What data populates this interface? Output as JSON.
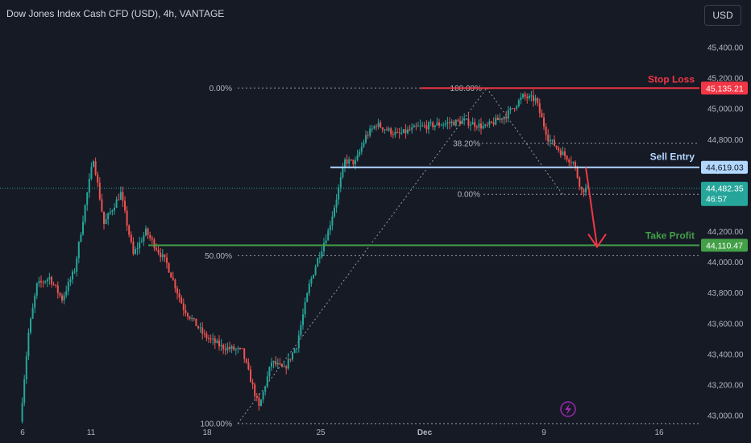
{
  "header": {
    "title": "Dow Jones Index Cash CFD (USD), 4h, VANTAGE",
    "currency_button": "USD"
  },
  "colors": {
    "background": "#161a25",
    "up": "#26a69a",
    "down": "#ef5350",
    "stop": "#f23645",
    "entry": "#b2d7ff",
    "take": "#43a047",
    "purple": "#9c27b0"
  },
  "annotations": {
    "stop_loss": "Stop Loss",
    "sell_entry": "Sell Entry",
    "take_profit": "Take Profit"
  },
  "price_labels": {
    "stop": "45,135.21",
    "entry": "44,619.03",
    "last": "44,482.35",
    "countdown": "46:57",
    "take": "44,110.47"
  },
  "fib_left": [
    "0.00%",
    "50.00%",
    "100.00%"
  ],
  "fib_right": [
    "100.00%",
    "38.20%",
    "0.00%"
  ],
  "chart_data": {
    "type": "candlestick",
    "y_ticks": [
      "45,400.00",
      "45,200.00",
      "45,000.00",
      "44,800.00",
      "44,600.00",
      "44,400.00",
      "44,200.00",
      "44,000.00",
      "43,800.00",
      "43,600.00",
      "43,400.00",
      "43,200.00",
      "43,000.00"
    ],
    "x_ticks": [
      "6",
      "11",
      "18",
      "25",
      "Dec",
      "9",
      "16"
    ],
    "ylim": [
      42930,
      45520
    ],
    "levels": {
      "stop_loss": 45135.21,
      "sell_entry": 44619.03,
      "last_price": 44482.35,
      "take_profit": 44110.47,
      "fib_high": 45136,
      "fib_50": 44043,
      "fib_low": 42948,
      "fib2_382": 44775,
      "fib2_0": 44443
    },
    "path": [
      [
        0,
        42960
      ],
      [
        4,
        43540
      ],
      [
        8,
        43850
      ],
      [
        14,
        43900
      ],
      [
        20,
        43760
      ],
      [
        26,
        43950
      ],
      [
        32,
        44450
      ],
      [
        35,
        44680
      ],
      [
        40,
        44250
      ],
      [
        48,
        44450
      ],
      [
        54,
        44050
      ],
      [
        60,
        44200
      ],
      [
        70,
        43990
      ],
      [
        78,
        43700
      ],
      [
        88,
        43520
      ],
      [
        96,
        43450
      ],
      [
        106,
        43420
      ],
      [
        114,
        43050
      ],
      [
        120,
        43350
      ],
      [
        126,
        43300
      ],
      [
        132,
        43460
      ],
      [
        138,
        43850
      ],
      [
        142,
        44020
      ],
      [
        147,
        44200
      ],
      [
        151,
        44420
      ],
      [
        155,
        44660
      ],
      [
        160,
        44650
      ],
      [
        165,
        44820
      ],
      [
        170,
        44900
      ],
      [
        180,
        44830
      ],
      [
        190,
        44880
      ],
      [
        200,
        44900
      ],
      [
        212,
        44920
      ],
      [
        222,
        44880
      ],
      [
        232,
        44960
      ],
      [
        240,
        45080
      ],
      [
        246,
        45060
      ],
      [
        252,
        44810
      ],
      [
        258,
        44720
      ],
      [
        264,
        44650
      ],
      [
        268,
        44470
      ],
      [
        271,
        44482
      ]
    ]
  }
}
